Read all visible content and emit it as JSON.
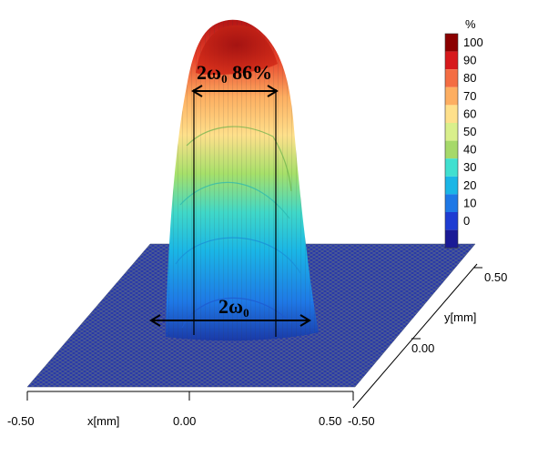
{
  "chart_data": {
    "type": "surface3d",
    "title": "",
    "x_axis": {
      "label": "x[mm]",
      "ticks": [
        "-0.50",
        "0.00",
        "0.50"
      ],
      "range": [
        -0.5,
        0.5
      ]
    },
    "y_axis": {
      "label": "y[mm]",
      "ticks": [
        "-0.50",
        "0.00",
        "0.50"
      ],
      "range": [
        -0.5,
        0.5
      ]
    },
    "z_axis": {
      "unit": "%",
      "range": [
        0,
        100
      ]
    },
    "colorbar": {
      "unit": "%",
      "ticks": [
        "100",
        "90",
        "80",
        "70",
        "60",
        "50",
        "40",
        "30",
        "20",
        "10",
        "0"
      ],
      "colors": [
        "#8b0000",
        "#d7191c",
        "#f46d43",
        "#fdae61",
        "#fee08b",
        "#d9ef8b",
        "#a6d96a",
        "#40e0d0",
        "#1ab6e6",
        "#1e78e6",
        "#1e3cd2",
        "#1a1a96"
      ]
    },
    "beam": {
      "shape": "flat-top",
      "center_x": 0.0,
      "center_y": 0.0,
      "peak_percent": 100
    },
    "annotations": [
      {
        "id": "top",
        "main": "2ω",
        "sub": "0",
        "suffix": " 86%"
      },
      {
        "id": "base",
        "main": "2ω",
        "sub": "0",
        "suffix": ""
      }
    ]
  }
}
